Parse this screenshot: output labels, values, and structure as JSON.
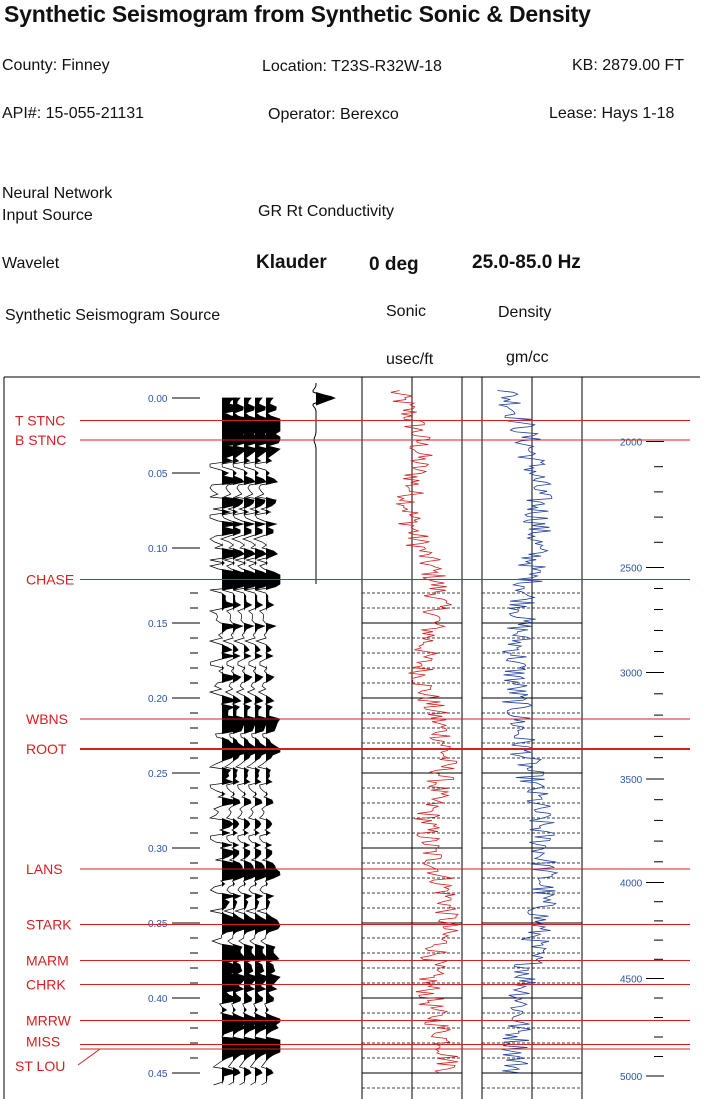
{
  "header": {
    "title": "Synthetic Seismogram from Synthetic Sonic & Density",
    "county": "County: Finney",
    "location": "Location: T23S-R32W-18",
    "kb": "KB: 2879.00 FT",
    "api": "API#: 15-055-21131",
    "operator": "Operator: Berexco",
    "lease": "Lease: Hays 1-18",
    "nn_source_line1": "Neural Network",
    "nn_source_line2": "Input Source",
    "nn_source_value": "GR Rt Conductivity",
    "wavelet_label": "Wavelet",
    "wavelet_type": "Klauder",
    "wavelet_phase": "0 deg",
    "wavelet_band": "25.0-85.0 Hz",
    "seis_source_label": "Synthetic Seismogram Source",
    "sonic_label": "Sonic",
    "density_label": "Density",
    "sonic_unit": "usec/ft",
    "density_unit": "gm/cc"
  },
  "colors": {
    "formation": "#d42020",
    "sonic": "#d42020",
    "density": "#1f3f9e",
    "time_axis": "#2c55a8",
    "depth_axis": "#2c55a8",
    "trace_fill": "#000000"
  },
  "chart_data": {
    "type": "line",
    "title": "Synthetic Seismogram from Synthetic Sonic & Density",
    "time_axis": {
      "unit": "",
      "range": [
        0,
        0.46
      ],
      "ticks": [
        0.0,
        0.05,
        0.1,
        0.15,
        0.2,
        0.25,
        0.3,
        0.35,
        0.4,
        0.45
      ]
    },
    "depth_axis": {
      "ticks": [
        {
          "depth": 2000,
          "time": 0.029
        },
        {
          "depth": 2500,
          "time": 0.113
        },
        {
          "depth": 3000,
          "time": 0.183
        },
        {
          "depth": 3500,
          "time": 0.254
        },
        {
          "depth": 4000,
          "time": 0.323
        },
        {
          "depth": 4500,
          "time": 0.387
        },
        {
          "depth": 5000,
          "time": 0.452
        }
      ]
    },
    "formations": [
      {
        "name": "T STNC",
        "time": 0.015
      },
      {
        "name": "B STNC",
        "time": 0.028
      },
      {
        "name": "CHASE",
        "time": 0.121
      },
      {
        "name": "WBNS",
        "time": 0.214
      },
      {
        "name": "ROOT",
        "time": 0.234
      },
      {
        "name": "LANS",
        "time": 0.314
      },
      {
        "name": "STARK",
        "time": 0.351
      },
      {
        "name": "MARM",
        "time": 0.375
      },
      {
        "name": "CHRK",
        "time": 0.391
      },
      {
        "name": "MRRW",
        "time": 0.415
      },
      {
        "name": "MISS",
        "time": 0.431
      },
      {
        "name": "ST LOU",
        "time": 0.434
      }
    ],
    "wavelet": {
      "type": "Klauder",
      "phase_deg": 0,
      "band_hz": [
        25.0,
        85.0
      ]
    },
    "series": [
      {
        "name": "Sonic",
        "unit": "usec/ft"
      },
      {
        "name": "Density",
        "unit": "gm/cc"
      }
    ],
    "grid": true
  }
}
